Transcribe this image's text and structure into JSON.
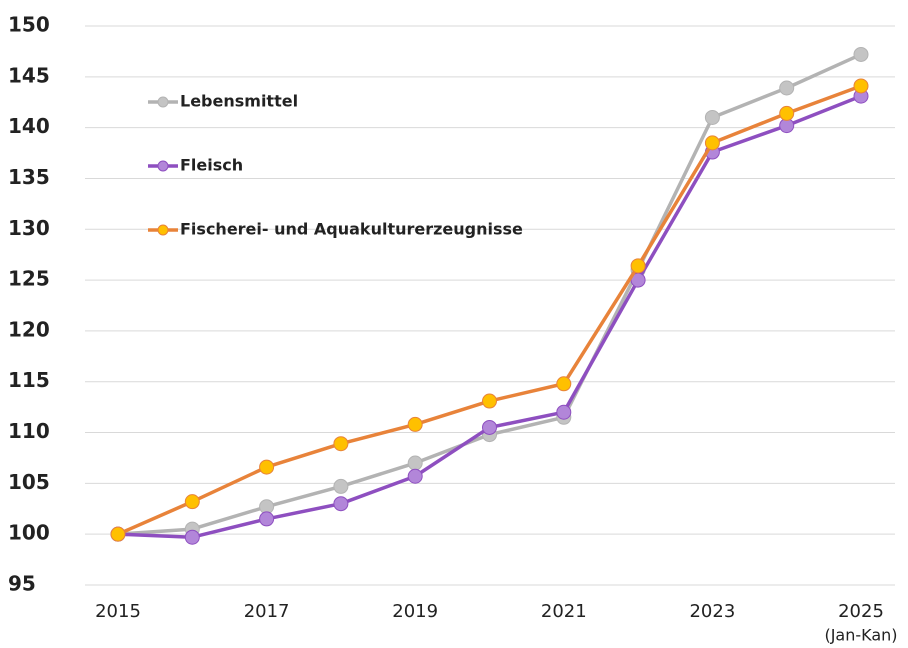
{
  "chart_data": {
    "type": "line",
    "x": [
      2015,
      2016,
      2017,
      2018,
      2019,
      2020,
      2021,
      2022,
      2023,
      2024,
      2025
    ],
    "xlim": [
      2015,
      2025
    ],
    "xticks": [
      2015,
      2017,
      2019,
      2021,
      2023,
      2025
    ],
    "annotations": [
      "(Jan-Kan)"
    ],
    "ylim": [
      95,
      150
    ],
    "yticks": [
      95,
      100,
      105,
      110,
      115,
      120,
      125,
      130,
      135,
      140,
      145,
      150
    ],
    "grid": true,
    "legend": "upper-left",
    "series": [
      {
        "name": "Lebensmittel",
        "color": "#b3b3b3",
        "marker_color": "#c4c4c4",
        "values": [
          100,
          100.5,
          102.7,
          104.7,
          107.0,
          109.8,
          111.5,
          126.0,
          141.0,
          143.9,
          147.2
        ]
      },
      {
        "name": "Fleisch",
        "color": "#8e4fc0",
        "marker_color": "#b286d9",
        "values": [
          100,
          99.7,
          101.5,
          103.0,
          105.7,
          110.5,
          112.0,
          125.0,
          137.6,
          140.2,
          143.1
        ]
      },
      {
        "name": "Fischerei- und Aquakulturerzeugnisse",
        "color": "#e8833a",
        "marker_color": "#ffc000",
        "values": [
          100,
          103.2,
          106.6,
          108.9,
          110.8,
          113.1,
          114.8,
          126.4,
          138.5,
          141.4,
          144.1
        ]
      }
    ]
  }
}
